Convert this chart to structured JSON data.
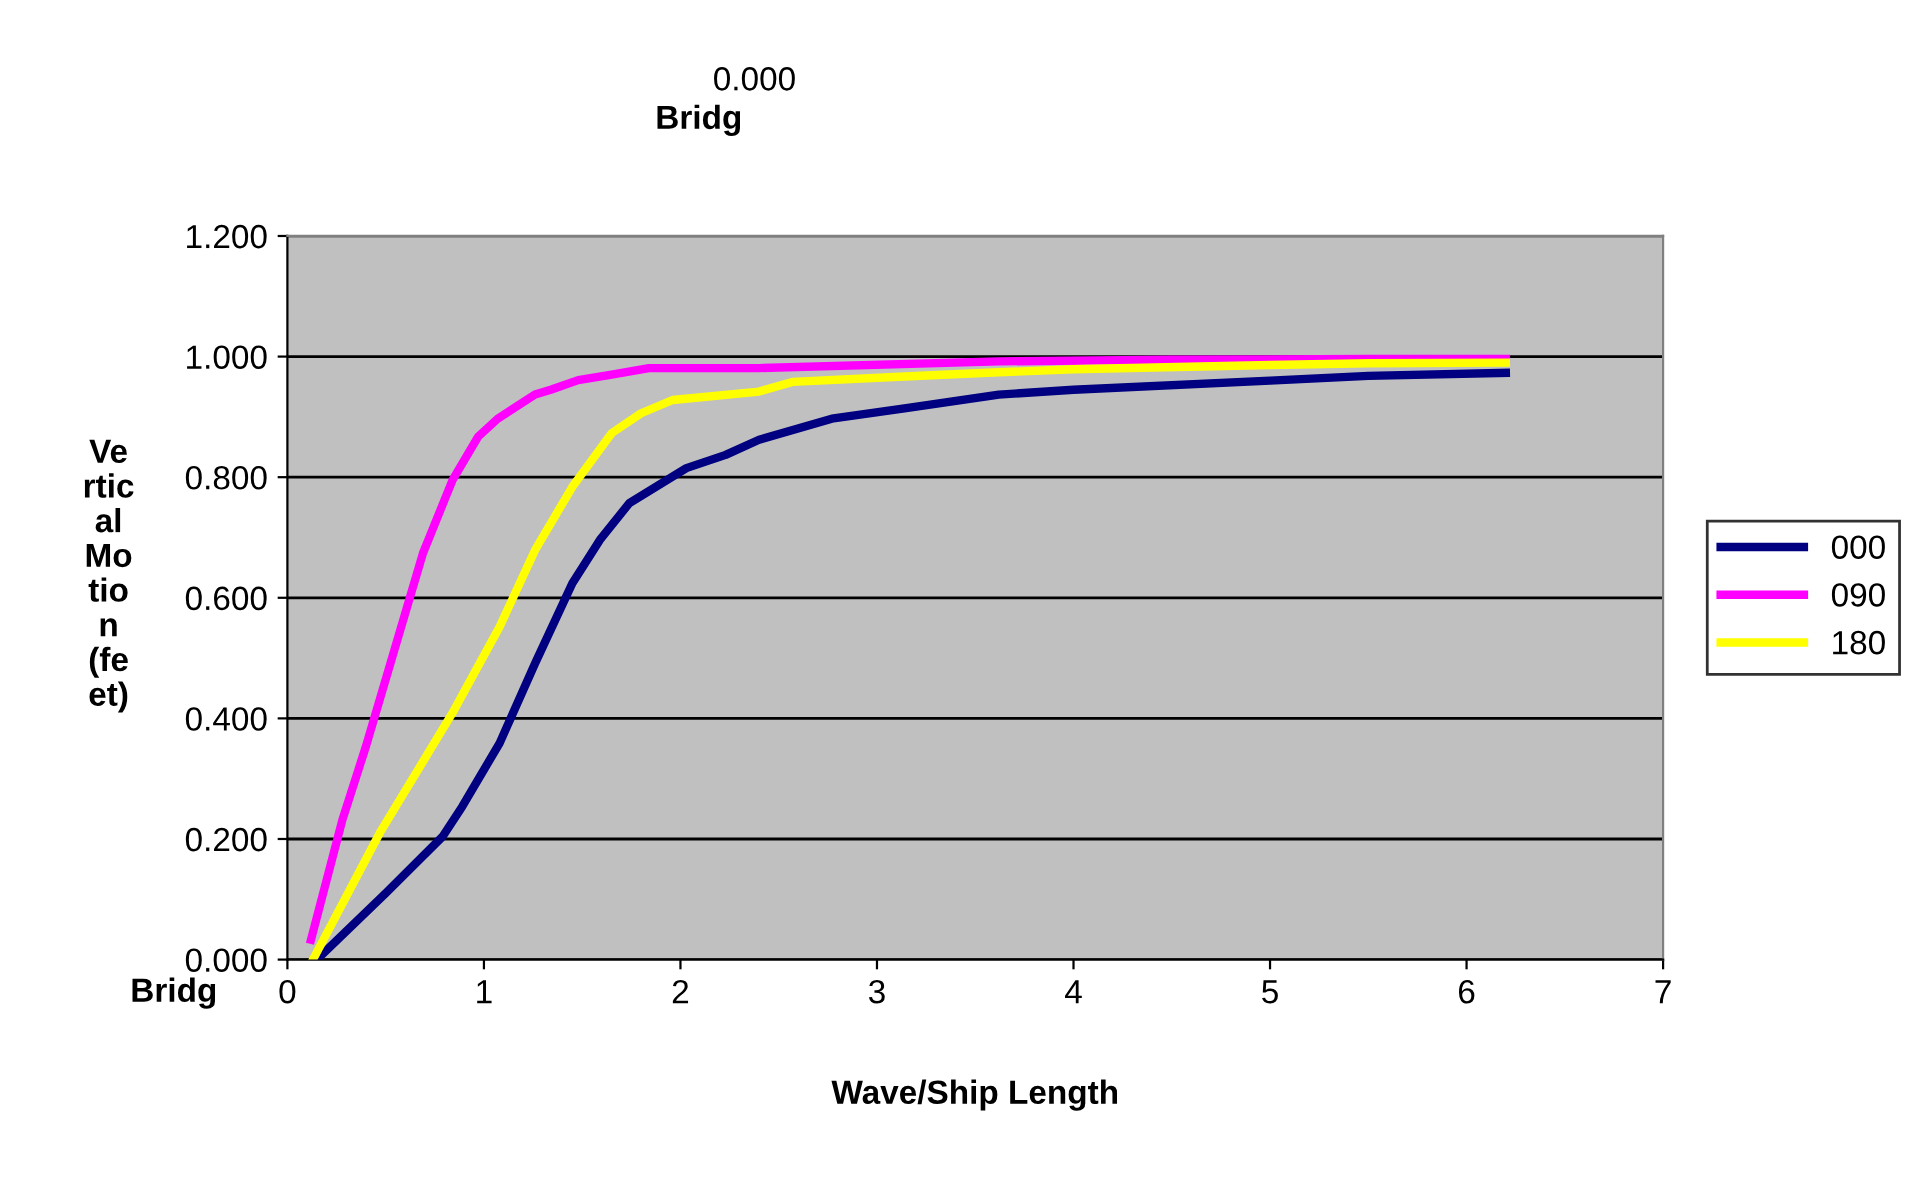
{
  "chart_data": {
    "type": "line",
    "title": "0.000",
    "subtitle": "Bridg",
    "xlabel": "Wave/Ship Length",
    "ylabel": "Ve\nrtic\nal\nMo\ntio\nn\n(fe\net)",
    "annotations": [
      "Bridg"
    ],
    "series": [
      {
        "name": "000",
        "color": "#000080",
        "x": [
          0.15,
          0.5,
          0.79,
          0.89,
          1.08,
          1.26,
          1.45,
          1.59,
          1.74,
          2.03,
          2.23,
          2.4,
          2.77,
          3.14,
          3.62,
          4.0,
          5.0,
          5.5,
          6.2
        ],
        "values": [
          0.0,
          0.11,
          0.204,
          0.254,
          0.359,
          0.491,
          0.624,
          0.696,
          0.757,
          0.815,
          0.837,
          0.862,
          0.897,
          0.914,
          0.937,
          0.945,
          0.96,
          0.968,
          0.973
        ]
      },
      {
        "name": "090",
        "color": "#ff00ff",
        "x": [
          0.12,
          0.28,
          0.4,
          0.62,
          0.69,
          0.84,
          0.97,
          1.07,
          1.26,
          1.34,
          1.48,
          1.65,
          1.84,
          2.4,
          3.62,
          4.5,
          5.5,
          6.2
        ],
        "values": [
          0.033,
          0.232,
          0.354,
          0.597,
          0.674,
          0.795,
          0.867,
          0.897,
          0.937,
          0.945,
          0.961,
          0.97,
          0.981,
          0.981,
          0.992,
          0.995,
          0.996,
          0.996
        ]
      },
      {
        "name": "180",
        "color": "#ffff00",
        "x": [
          0.13,
          0.47,
          0.84,
          1.08,
          1.26,
          1.45,
          1.65,
          1.8,
          1.96,
          2.4,
          2.57,
          3.14,
          3.62,
          4.0,
          5.0,
          5.5,
          6.2
        ],
        "values": [
          0.0,
          0.21,
          0.409,
          0.552,
          0.679,
          0.784,
          0.873,
          0.906,
          0.928,
          0.942,
          0.958,
          0.967,
          0.974,
          0.979,
          0.986,
          0.989,
          0.99
        ]
      }
    ],
    "xlim": [
      0,
      7
    ],
    "xticks": [
      0,
      1,
      2,
      3,
      4,
      5,
      6,
      7
    ],
    "ylim": [
      0,
      1.2
    ],
    "yticks": [
      {
        "value": 0,
        "label": "0.000"
      },
      {
        "value": 0.2,
        "label": "0.200"
      },
      {
        "value": 0.4,
        "label": "0.400"
      },
      {
        "value": 0.6,
        "label": "0.600"
      },
      {
        "value": 0.8,
        "label": "0.800"
      },
      {
        "value": 1.0,
        "label": "1.000"
      },
      {
        "value": 1.2,
        "label": "1.200"
      }
    ],
    "grid": "y",
    "legend": "right",
    "marker": "none",
    "line_style": "solid"
  }
}
